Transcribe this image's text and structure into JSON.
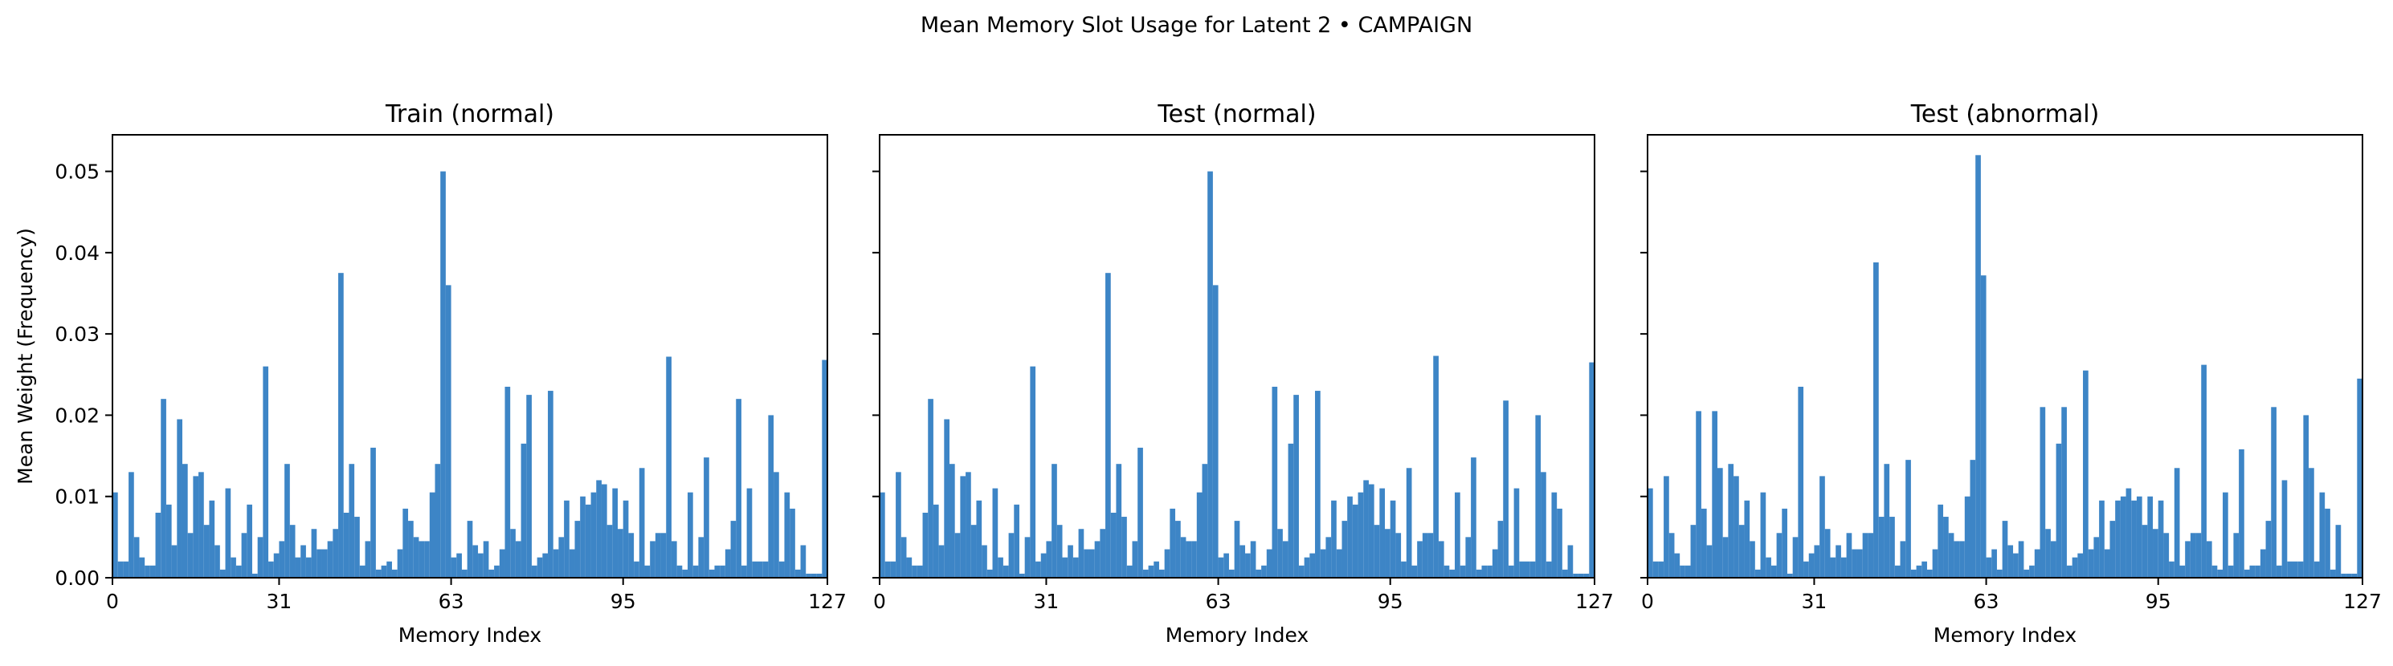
{
  "suptitle": "Mean Memory Slot Usage for Latent 2 • CAMPAIGN",
  "colors": {
    "bar": "#3d85c6",
    "axes": "#000000",
    "background": "#ffffff"
  },
  "chart_data": [
    {
      "type": "bar",
      "title": "Train (normal)",
      "xlabel": "Memory Index",
      "ylabel": "Mean Weight (Frequency)",
      "xlim": [
        0,
        127
      ],
      "ylim": [
        0,
        0.0545
      ],
      "xticks": [
        "0",
        "31",
        "63",
        "95",
        "127"
      ],
      "yticks": [
        "0.00",
        "0.01",
        "0.02",
        "0.03",
        "0.04",
        "0.05"
      ],
      "x_start": 0,
      "values": [
        0.0105,
        0.002,
        0.002,
        0.013,
        0.005,
        0.0025,
        0.0015,
        0.0015,
        0.008,
        0.022,
        0.009,
        0.004,
        0.0195,
        0.014,
        0.0055,
        0.0125,
        0.013,
        0.0065,
        0.0095,
        0.004,
        0.001,
        0.011,
        0.0025,
        0.0015,
        0.0055,
        0.009,
        0.0005,
        0.005,
        0.026,
        0.002,
        0.003,
        0.0045,
        0.014,
        0.0065,
        0.0025,
        0.004,
        0.0025,
        0.006,
        0.0035,
        0.0035,
        0.0045,
        0.006,
        0.0375,
        0.008,
        0.014,
        0.0075,
        0.0015,
        0.0045,
        0.016,
        0.001,
        0.0015,
        0.002,
        0.001,
        0.0035,
        0.0085,
        0.007,
        0.005,
        0.0045,
        0.0045,
        0.0105,
        0.014,
        0.05,
        0.036,
        0.0025,
        0.003,
        0.001,
        0.007,
        0.004,
        0.003,
        0.0045,
        0.001,
        0.0015,
        0.0035,
        0.0235,
        0.006,
        0.0045,
        0.0165,
        0.0225,
        0.0015,
        0.0025,
        0.003,
        0.023,
        0.0035,
        0.005,
        0.0095,
        0.0035,
        0.007,
        0.01,
        0.009,
        0.0105,
        0.012,
        0.0115,
        0.0065,
        0.011,
        0.006,
        0.0095,
        0.0055,
        0.002,
        0.0135,
        0.0015,
        0.0045,
        0.0055,
        0.0055,
        0.0272,
        0.0045,
        0.0015,
        0.001,
        0.0105,
        0.0015,
        0.005,
        0.0148,
        0.001,
        0.0015,
        0.0015,
        0.0035,
        0.007,
        0.022,
        0.0015,
        0.011,
        0.002,
        0.002,
        0.002,
        0.02,
        0.013,
        0.002,
        0.0105,
        0.0085,
        0.001,
        0.004,
        0.0005,
        0.0005,
        0.0005,
        0.0268
      ]
    },
    {
      "type": "bar",
      "title": "Test (normal)",
      "xlabel": "Memory Index",
      "ylabel": "",
      "xlim": [
        0,
        127
      ],
      "ylim": [
        0,
        0.0545
      ],
      "xticks": [
        "0",
        "31",
        "63",
        "95",
        "127"
      ],
      "yticks": [
        "",
        "",
        "",
        "",
        "",
        ""
      ],
      "x_start": 0,
      "values": [
        0.0105,
        0.002,
        0.002,
        0.013,
        0.005,
        0.0025,
        0.0015,
        0.0015,
        0.008,
        0.022,
        0.009,
        0.004,
        0.0195,
        0.014,
        0.0055,
        0.0125,
        0.013,
        0.0065,
        0.0095,
        0.004,
        0.001,
        0.011,
        0.0025,
        0.0015,
        0.0055,
        0.009,
        0.0005,
        0.005,
        0.026,
        0.002,
        0.003,
        0.0045,
        0.014,
        0.0065,
        0.0025,
        0.004,
        0.0025,
        0.006,
        0.0035,
        0.0035,
        0.0045,
        0.006,
        0.0375,
        0.008,
        0.014,
        0.0075,
        0.0015,
        0.0045,
        0.016,
        0.001,
        0.0015,
        0.002,
        0.001,
        0.0035,
        0.0085,
        0.007,
        0.005,
        0.0045,
        0.0045,
        0.0105,
        0.014,
        0.05,
        0.036,
        0.0025,
        0.003,
        0.001,
        0.007,
        0.004,
        0.003,
        0.0045,
        0.001,
        0.0015,
        0.0035,
        0.0235,
        0.006,
        0.0045,
        0.0165,
        0.0225,
        0.0015,
        0.0025,
        0.003,
        0.023,
        0.0035,
        0.005,
        0.0095,
        0.0035,
        0.007,
        0.01,
        0.009,
        0.0105,
        0.012,
        0.0115,
        0.0065,
        0.011,
        0.006,
        0.0095,
        0.0055,
        0.002,
        0.0135,
        0.0015,
        0.0045,
        0.0055,
        0.0055,
        0.0273,
        0.0045,
        0.0015,
        0.001,
        0.0105,
        0.0015,
        0.005,
        0.0148,
        0.001,
        0.0015,
        0.0015,
        0.0035,
        0.007,
        0.0218,
        0.0015,
        0.011,
        0.002,
        0.002,
        0.002,
        0.02,
        0.013,
        0.002,
        0.0105,
        0.0085,
        0.001,
        0.004,
        0.0005,
        0.0005,
        0.0005,
        0.0265
      ]
    },
    {
      "type": "bar",
      "title": "Test (abnormal)",
      "xlabel": "Memory Index",
      "ylabel": "",
      "xlim": [
        0,
        127
      ],
      "ylim": [
        0,
        0.0545
      ],
      "xticks": [
        "0",
        "31",
        "63",
        "95",
        "127"
      ],
      "yticks": [
        "",
        "",
        "",
        "",
        "",
        ""
      ],
      "x_start": 0,
      "values": [
        0.011,
        0.002,
        0.002,
        0.0125,
        0.0055,
        0.003,
        0.0015,
        0.0015,
        0.0065,
        0.0205,
        0.0085,
        0.004,
        0.0205,
        0.0135,
        0.005,
        0.014,
        0.0125,
        0.0065,
        0.0095,
        0.0045,
        0.001,
        0.0105,
        0.0025,
        0.0015,
        0.0055,
        0.0085,
        0.0005,
        0.005,
        0.0235,
        0.002,
        0.003,
        0.004,
        0.0125,
        0.006,
        0.0025,
        0.004,
        0.0025,
        0.0055,
        0.0035,
        0.0035,
        0.0055,
        0.0055,
        0.0388,
        0.0075,
        0.014,
        0.0075,
        0.0015,
        0.0045,
        0.0145,
        0.001,
        0.0015,
        0.002,
        0.001,
        0.0035,
        0.009,
        0.0075,
        0.0055,
        0.0045,
        0.0045,
        0.01,
        0.0145,
        0.052,
        0.0372,
        0.0025,
        0.0035,
        0.001,
        0.007,
        0.004,
        0.003,
        0.0045,
        0.001,
        0.0015,
        0.0035,
        0.021,
        0.006,
        0.0045,
        0.0165,
        0.021,
        0.0015,
        0.0025,
        0.003,
        0.0255,
        0.0035,
        0.005,
        0.0095,
        0.0035,
        0.007,
        0.0095,
        0.01,
        0.011,
        0.0095,
        0.01,
        0.0065,
        0.01,
        0.006,
        0.0095,
        0.0055,
        0.002,
        0.0135,
        0.0015,
        0.0045,
        0.0055,
        0.0055,
        0.0262,
        0.0045,
        0.0015,
        0.001,
        0.0105,
        0.0015,
        0.0055,
        0.0158,
        0.001,
        0.0015,
        0.0015,
        0.0035,
        0.007,
        0.021,
        0.0015,
        0.012,
        0.002,
        0.002,
        0.002,
        0.02,
        0.0135,
        0.002,
        0.0105,
        0.0085,
        0.001,
        0.0065,
        0.0005,
        0.0005,
        0.0005,
        0.0245
      ]
    }
  ]
}
